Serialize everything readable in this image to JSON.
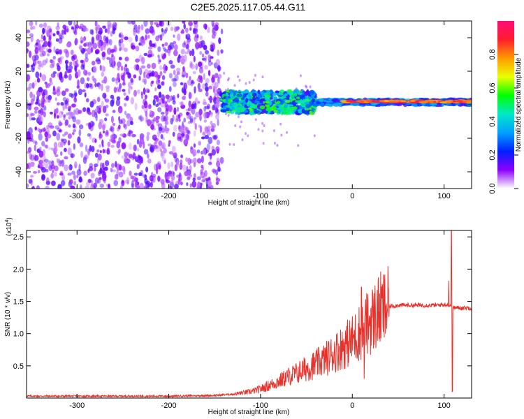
{
  "figure_title": "C2E5.2025.117.05.44.G11",
  "chart_data": [
    {
      "type": "heatmap",
      "title": "",
      "xlabel": "Height of straight line (km)",
      "ylabel": "Frequency (Hz)",
      "xlim": [
        -355,
        130
      ],
      "ylim": [
        -50,
        50
      ],
      "xticks": [
        -300,
        -200,
        -100,
        0,
        100
      ],
      "yticks": [
        -40,
        -20,
        0,
        20,
        40
      ],
      "grid": false,
      "colorbar": {
        "label": "Normalized spectral amplitude",
        "range": [
          0,
          1
        ],
        "ticks": [
          0.0,
          0.2,
          0.4,
          0.6,
          0.8
        ],
        "colormap": [
          "#ff0a78",
          "#ff1e2d",
          "#ff9a00",
          "#eaff00",
          "#00ff00",
          "#00e8c8",
          "#00a0ff",
          "#0020ff",
          "#8c00ff",
          "#ffffff"
        ]
      },
      "regions": [
        {
          "description_x_range": [
            -355,
            -142
          ],
          "freq_range": [
            -50,
            50
          ],
          "amplitude": 0.1
        },
        {
          "description_x_range": [
            -142,
            -40
          ],
          "freq_range": [
            -5,
            8
          ],
          "amplitude": 0.45
        },
        {
          "description_x_range": [
            -40,
            130
          ],
          "freq_range": [
            0,
            5
          ],
          "amplitude": 0.9
        }
      ]
    },
    {
      "type": "line",
      "title": "",
      "xlabel": "Height of straight line (km)",
      "ylabel": "SNR (10 * v/v)",
      "y_multiplier_label": "(x10",
      "y_multiplier_exp": "4",
      "xlim": [
        -355,
        130
      ],
      "ylim": [
        0,
        26000
      ],
      "xticks": [
        -300,
        -200,
        -100,
        0,
        100
      ],
      "yticks": [
        0.5,
        1.0,
        1.5,
        2.0,
        2.5
      ],
      "ytick_labels": [
        "0.5",
        "1.0",
        "1.5",
        "2.0",
        "2.5"
      ],
      "series_color": "#e8312a",
      "x": [
        -355,
        -300,
        -250,
        -200,
        -150,
        -130,
        -110,
        -100,
        -90,
        -80,
        -70,
        -60,
        -50,
        -40,
        -30,
        -20,
        -10,
        0,
        10,
        20,
        30,
        40,
        50,
        60,
        70,
        80,
        90,
        100,
        105,
        110,
        120,
        130
      ],
      "values": [
        300,
        300,
        300,
        300,
        400,
        600,
        1000,
        1400,
        2000,
        2600,
        3300,
        3900,
        4600,
        5200,
        6000,
        7000,
        8000,
        9000,
        10500,
        12000,
        13500,
        14200,
        14400,
        14400,
        14400,
        14400,
        14400,
        14500,
        14500,
        14000,
        14000,
        14000
      ],
      "spikes": [
        {
          "x": 10,
          "y": 17200
        },
        {
          "x": 13,
          "y": 3000
        },
        {
          "x": 105,
          "y": 18200
        },
        {
          "x": 108,
          "y": 26000
        },
        {
          "x": 109,
          "y": 1000
        }
      ]
    }
  ]
}
